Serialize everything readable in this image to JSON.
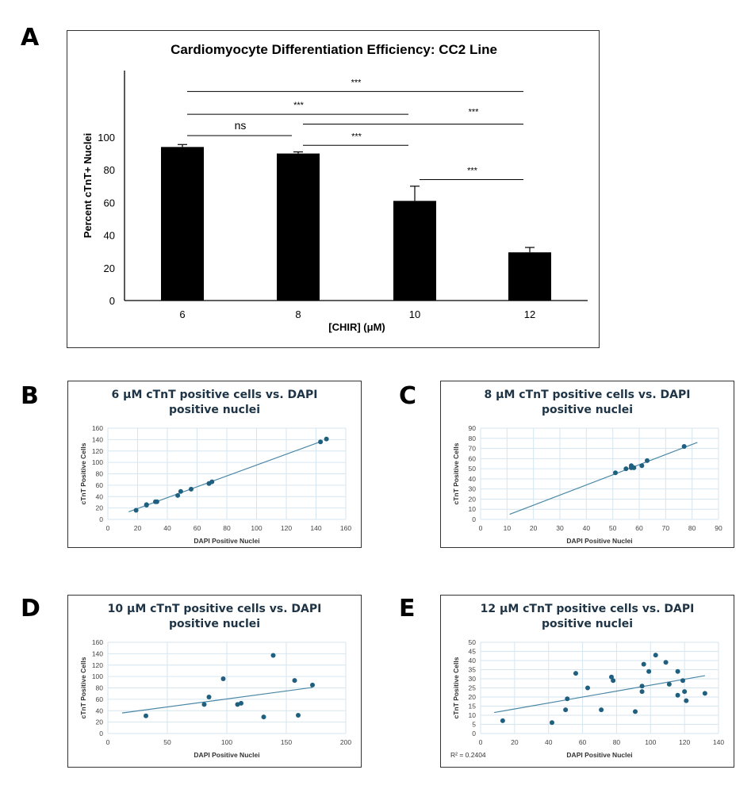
{
  "panel_letters": [
    "A",
    "B",
    "C",
    "D",
    "E"
  ],
  "chart_data": [
    {
      "type": "bar",
      "panel": "A",
      "title": "Cardiomyocyte Differentiation Efficiency: CC2 Line",
      "xlabel": "[CHIR] (μM)",
      "ylabel": "Percent cTnT+ Nuclei",
      "categories": [
        "6",
        "8",
        "10",
        "12"
      ],
      "values": [
        94,
        90,
        61,
        29.5
      ],
      "errors": [
        1.5,
        1,
        9,
        3
      ],
      "ylim": [
        0,
        140
      ],
      "yticks": [
        0,
        20,
        40,
        60,
        80,
        100
      ],
      "bar_color": "#000000",
      "significance": [
        {
          "from": "6",
          "to": "12",
          "label": "***",
          "level": 128
        },
        {
          "from": "6",
          "to": "10",
          "label": "***",
          "level": 114
        },
        {
          "from": "8",
          "to": "12",
          "label": "***",
          "level": 108
        },
        {
          "from": "6",
          "to": "8",
          "label": "ns",
          "level": 101
        },
        {
          "from": "8",
          "to": "10",
          "label": "***",
          "level": 95
        },
        {
          "from": "10",
          "to": "12",
          "label": "***",
          "level": 74
        }
      ]
    },
    {
      "type": "scatter",
      "panel": "B",
      "title": "6 μM cTnT positive cells vs. DAPI positive nuclei",
      "xlabel": "DAPI Positive Nuclei",
      "ylabel": "cTnT Positive Cells",
      "xlim": [
        0,
        160
      ],
      "ylim": [
        0,
        160
      ],
      "xstep": 20,
      "ystep": 20,
      "points": [
        [
          19,
          16
        ],
        [
          26,
          25
        ],
        [
          26,
          26
        ],
        [
          32,
          31
        ],
        [
          33,
          31
        ],
        [
          47,
          42
        ],
        [
          49,
          49
        ],
        [
          56,
          53
        ],
        [
          68,
          63
        ],
        [
          70,
          66
        ],
        [
          143,
          136
        ],
        [
          147,
          141
        ]
      ],
      "trend": {
        "slope": 0.953,
        "intercept": 0,
        "x_range": [
          14,
          143
        ]
      }
    },
    {
      "type": "scatter",
      "panel": "C",
      "title": "8 μM cTnT positive cells vs. DAPI positive nuclei",
      "xlabel": "DAPI Positive Nuclei",
      "ylabel": "cTnT Positive Cells",
      "xlim": [
        0,
        90
      ],
      "ylim": [
        0,
        90
      ],
      "xstep": 10,
      "ystep": 10,
      "points": [
        [
          51,
          46
        ],
        [
          55,
          50
        ],
        [
          57,
          53
        ],
        [
          57,
          51
        ],
        [
          58,
          51
        ],
        [
          61,
          53
        ],
        [
          63,
          58
        ],
        [
          77,
          72
        ]
      ],
      "trend": {
        "slope": 1.0,
        "intercept": -6,
        "x_range": [
          11,
          82
        ]
      }
    },
    {
      "type": "scatter",
      "panel": "D",
      "title": "10 μM cTnT positive cells vs. DAPI positive nuclei",
      "xlabel": "DAPI Positive Nuclei",
      "ylabel": "cTnT Positive Cells",
      "xlim": [
        0,
        200
      ],
      "ylim": [
        0,
        160
      ],
      "xstep": 50,
      "ystep": 20,
      "points": [
        [
          32,
          31
        ],
        [
          81,
          51
        ],
        [
          85,
          64
        ],
        [
          97,
          96
        ],
        [
          109,
          51
        ],
        [
          112,
          53
        ],
        [
          131,
          29
        ],
        [
          139,
          137
        ],
        [
          157,
          93
        ],
        [
          160,
          32
        ],
        [
          172,
          85
        ]
      ],
      "trend": {
        "slope": 0.28,
        "intercept": 32.6,
        "x_range": [
          12,
          172
        ]
      }
    },
    {
      "type": "scatter",
      "panel": "E",
      "title": "12 μM cTnT positive cells vs. DAPI positive nuclei",
      "xlabel": "DAPI Positive Nuclei",
      "ylabel": "cTnT Positive Cells",
      "xlim": [
        0,
        140
      ],
      "ylim": [
        0,
        50
      ],
      "xstep": 20,
      "ystep": 5,
      "points": [
        [
          13,
          7
        ],
        [
          42,
          6
        ],
        [
          50,
          13
        ],
        [
          51,
          19
        ],
        [
          56,
          33
        ],
        [
          63,
          25
        ],
        [
          71,
          13
        ],
        [
          77,
          31
        ],
        [
          78,
          29
        ],
        [
          91,
          12
        ],
        [
          95,
          26
        ],
        [
          95,
          23
        ],
        [
          96,
          38
        ],
        [
          99,
          34
        ],
        [
          103,
          43
        ],
        [
          109,
          39
        ],
        [
          111,
          27
        ],
        [
          116,
          34
        ],
        [
          116,
          21
        ],
        [
          119,
          29
        ],
        [
          120,
          23
        ],
        [
          121,
          18
        ],
        [
          132,
          22
        ]
      ],
      "trend": {
        "slope": 0.163,
        "intercept": 10.2,
        "x_range": [
          8,
          132
        ]
      },
      "annotation": "R² = 0.2404"
    }
  ],
  "colors": {
    "point": "#1f5f7f",
    "trend": "#4a87a6",
    "grid": "#d6e6f0",
    "title": "#1e3446"
  }
}
